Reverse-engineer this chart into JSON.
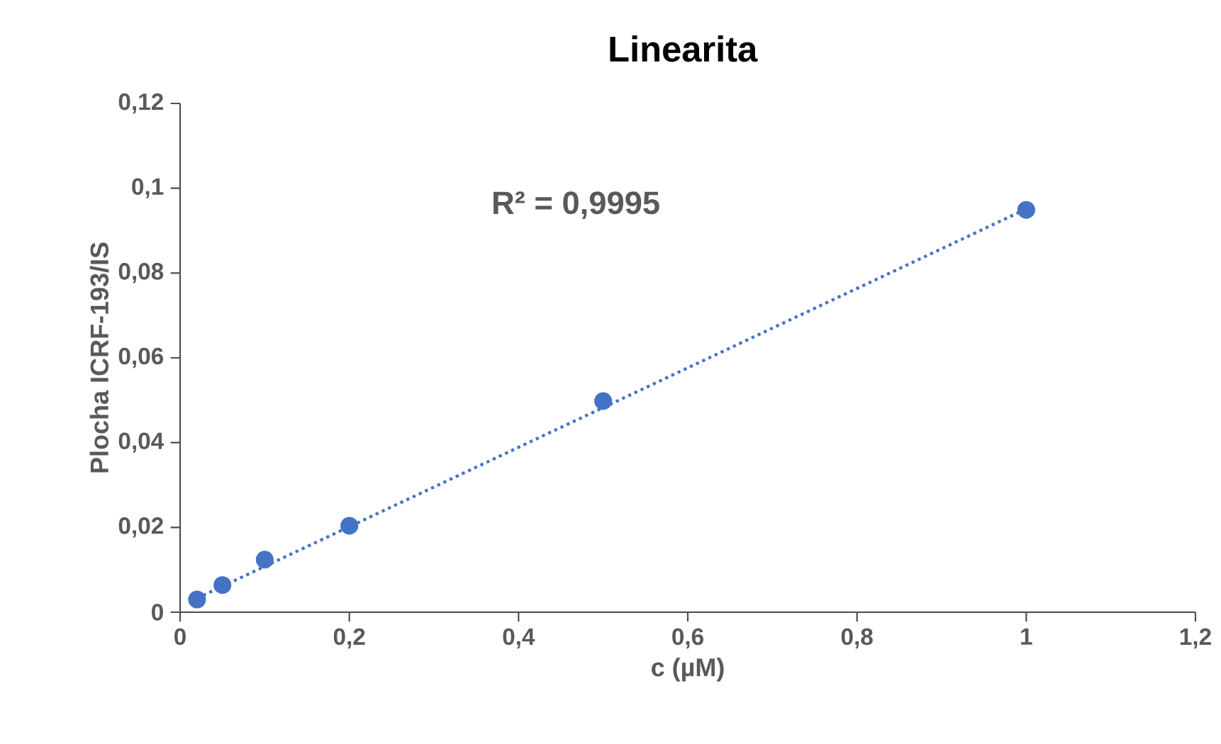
{
  "chart_data": {
    "type": "scatter",
    "title": "Linearita",
    "xlabel": "c (µM)",
    "ylabel": "Plocha ICRF-193/IS",
    "series": [
      {
        "color": "#4472c4",
        "x": [
          0.02,
          0.05,
          0.1,
          0.2,
          0.5,
          1
        ],
        "values": [
          0.003,
          0.0064,
          0.0124,
          0.0204,
          0.0498,
          0.0949
        ]
      },
      {
        "type": "line",
        "color": "#4472c4",
        "line_style": "dotted",
        "marker": "none",
        "x": [
          0.02,
          1
        ],
        "values": [
          0.0033,
          0.0951
        ]
      }
    ],
    "marker": "circle",
    "xlim": [
      0,
      1.2
    ],
    "ylim": [
      0,
      0.12
    ],
    "xticks": [
      0,
      {
        "value": 0.2,
        "label": "0,2"
      },
      {
        "value": 0.4,
        "label": "0,4"
      },
      {
        "value": 0.6,
        "label": "0,6"
      },
      {
        "value": 0.8,
        "label": "0,8"
      },
      1,
      {
        "value": 1.2,
        "label": "1,2"
      }
    ],
    "yticks": [
      0,
      {
        "value": 0.02,
        "label": "0,02"
      },
      {
        "value": 0.04,
        "label": "0,04"
      },
      {
        "value": 0.06,
        "label": "0,06"
      },
      {
        "value": 0.08,
        "label": "0,08"
      },
      {
        "value": 0.1,
        "label": "0,1"
      },
      {
        "value": 0.12,
        "label": "0,12"
      }
    ],
    "annotations": [
      "R² = 0,9995"
    ]
  }
}
